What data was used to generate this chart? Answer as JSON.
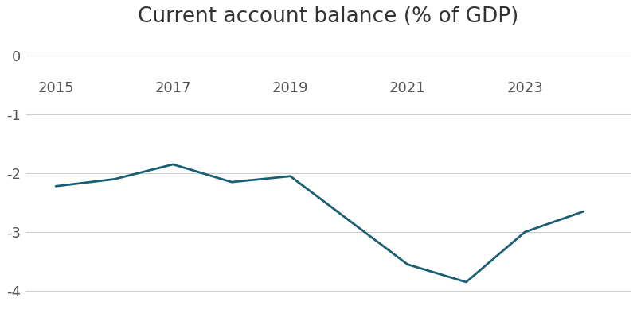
{
  "title": "Current account balance (% of GDP)",
  "x": [
    2015,
    2016,
    2017,
    2018,
    2019,
    2020,
    2021,
    2022,
    2023,
    2024
  ],
  "y": [
    -2.22,
    -2.1,
    -1.85,
    -2.15,
    -2.05,
    -2.8,
    -3.55,
    -3.85,
    -3.0,
    -2.65
  ],
  "line_color": "#1a5e75",
  "line_width": 2.0,
  "xticks": [
    2015,
    2017,
    2019,
    2021,
    2023
  ],
  "yticks": [
    0,
    -1,
    -2,
    -3,
    -4
  ],
  "ylim": [
    -4.4,
    0.3
  ],
  "xlim": [
    2014.5,
    2024.8
  ],
  "title_fontsize": 19,
  "tick_fontsize": 13,
  "background_color": "#ffffff",
  "grid_color": "#cccccc",
  "grid_alpha": 1.0,
  "grid_linewidth": 0.8,
  "xlabel_y_data": -0.55
}
